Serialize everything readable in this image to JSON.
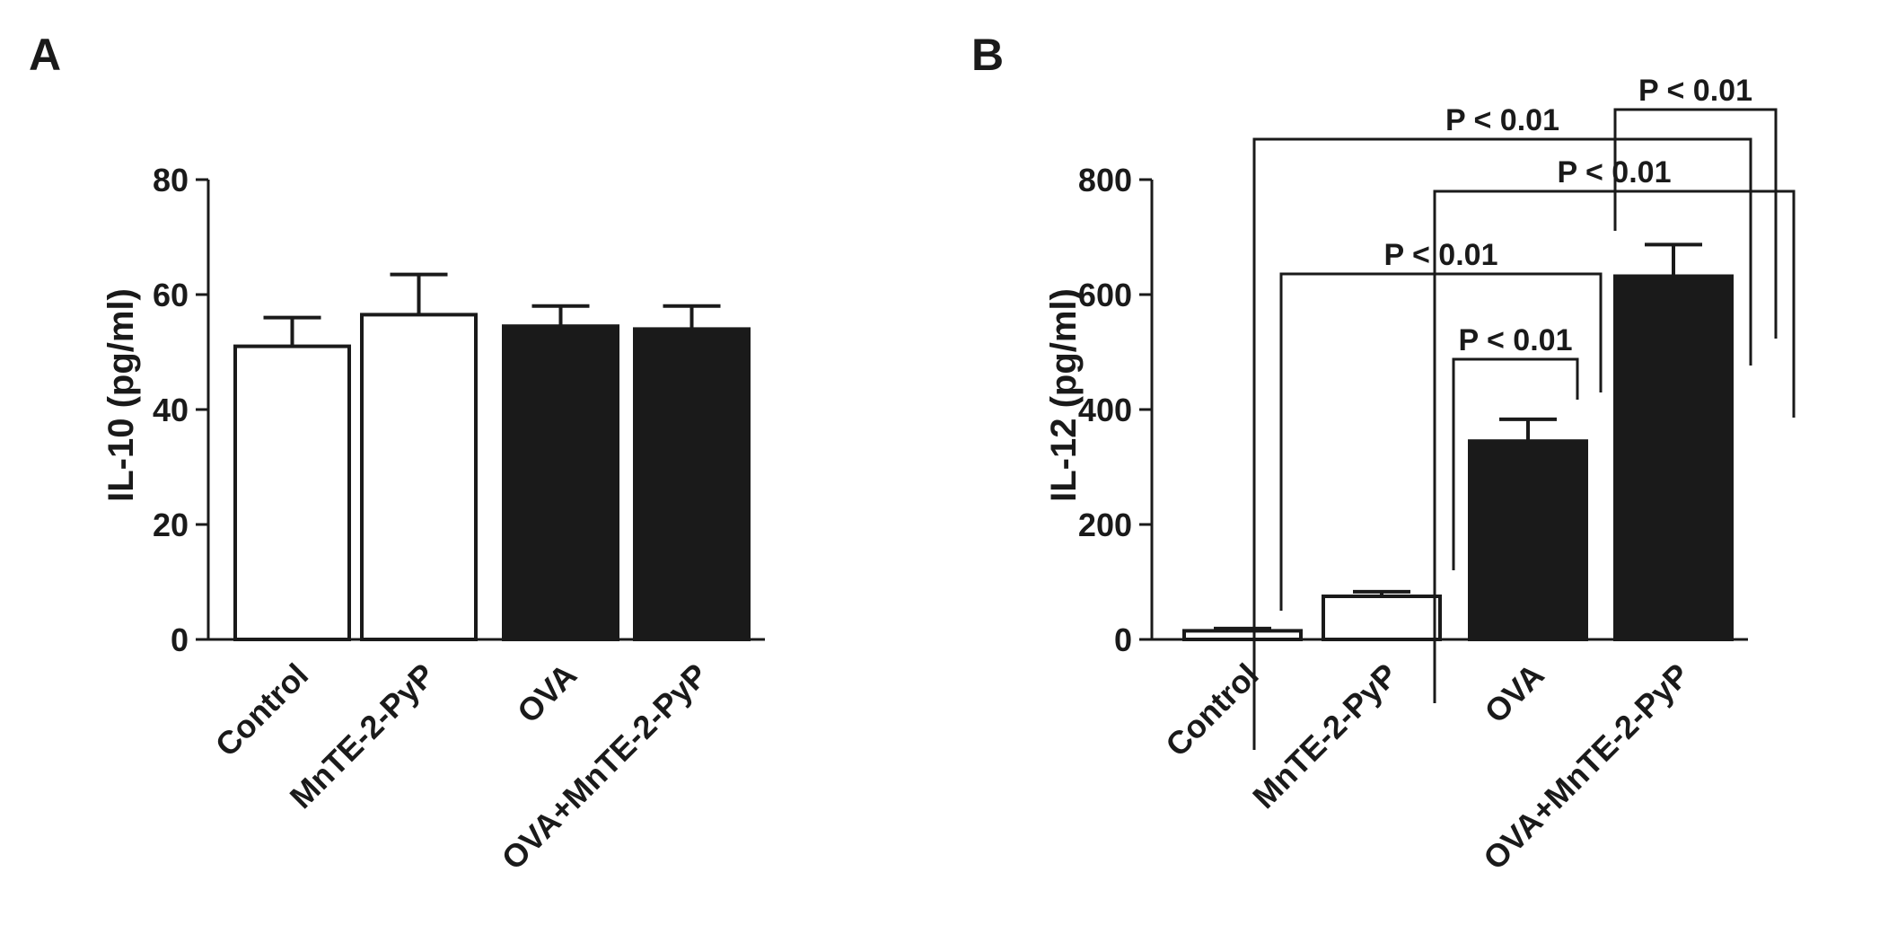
{
  "panels": [
    {
      "letter": "A",
      "chart_data": {
        "type": "bar",
        "categories": [
          "Control",
          "MnTE-2-PyP",
          "OVA",
          "OVA+MnTE-2-PyP"
        ],
        "values": [
          51,
          56.5,
          54.5,
          54
        ],
        "errors": [
          5,
          7,
          3.5,
          4
        ],
        "bar_fill": [
          "#ffffff",
          "#ffffff",
          "#1a1a1a",
          "#1a1a1a"
        ],
        "ylabel": "IL-10 (pg/ml)",
        "ylim": [
          0,
          80
        ],
        "yticks": [
          0,
          20,
          40,
          60,
          80
        ],
        "significance": []
      }
    },
    {
      "letter": "B",
      "chart_data": {
        "type": "bar",
        "categories": [
          "Control",
          "MnTE-2-PyP",
          "OVA",
          "OVA+MnTE-2-PyP"
        ],
        "values": [
          15,
          75,
          345,
          632
        ],
        "errors": [
          4,
          8,
          38,
          55
        ],
        "bar_fill": [
          "#ffffff",
          "#ffffff",
          "#1a1a1a",
          "#1a1a1a"
        ],
        "ylabel": "IL-12 (pg/ml)",
        "ylim": [
          0,
          800
        ],
        "yticks": [
          0,
          200,
          400,
          600,
          800
        ],
        "significance": [
          {
            "from": 2,
            "to": 3,
            "label": "P < 0.01"
          },
          {
            "from": 0,
            "to": 3,
            "label": "P < 0.01"
          },
          {
            "from": 1,
            "to": 3,
            "label": "P < 0.01"
          },
          {
            "from": 0,
            "to": 2,
            "label": "P < 0.01"
          },
          {
            "from": 1,
            "to": 2,
            "label": "P < 0.01"
          }
        ]
      }
    }
  ],
  "colors": {
    "ink": "#1a1a1a",
    "background": "#ffffff"
  }
}
